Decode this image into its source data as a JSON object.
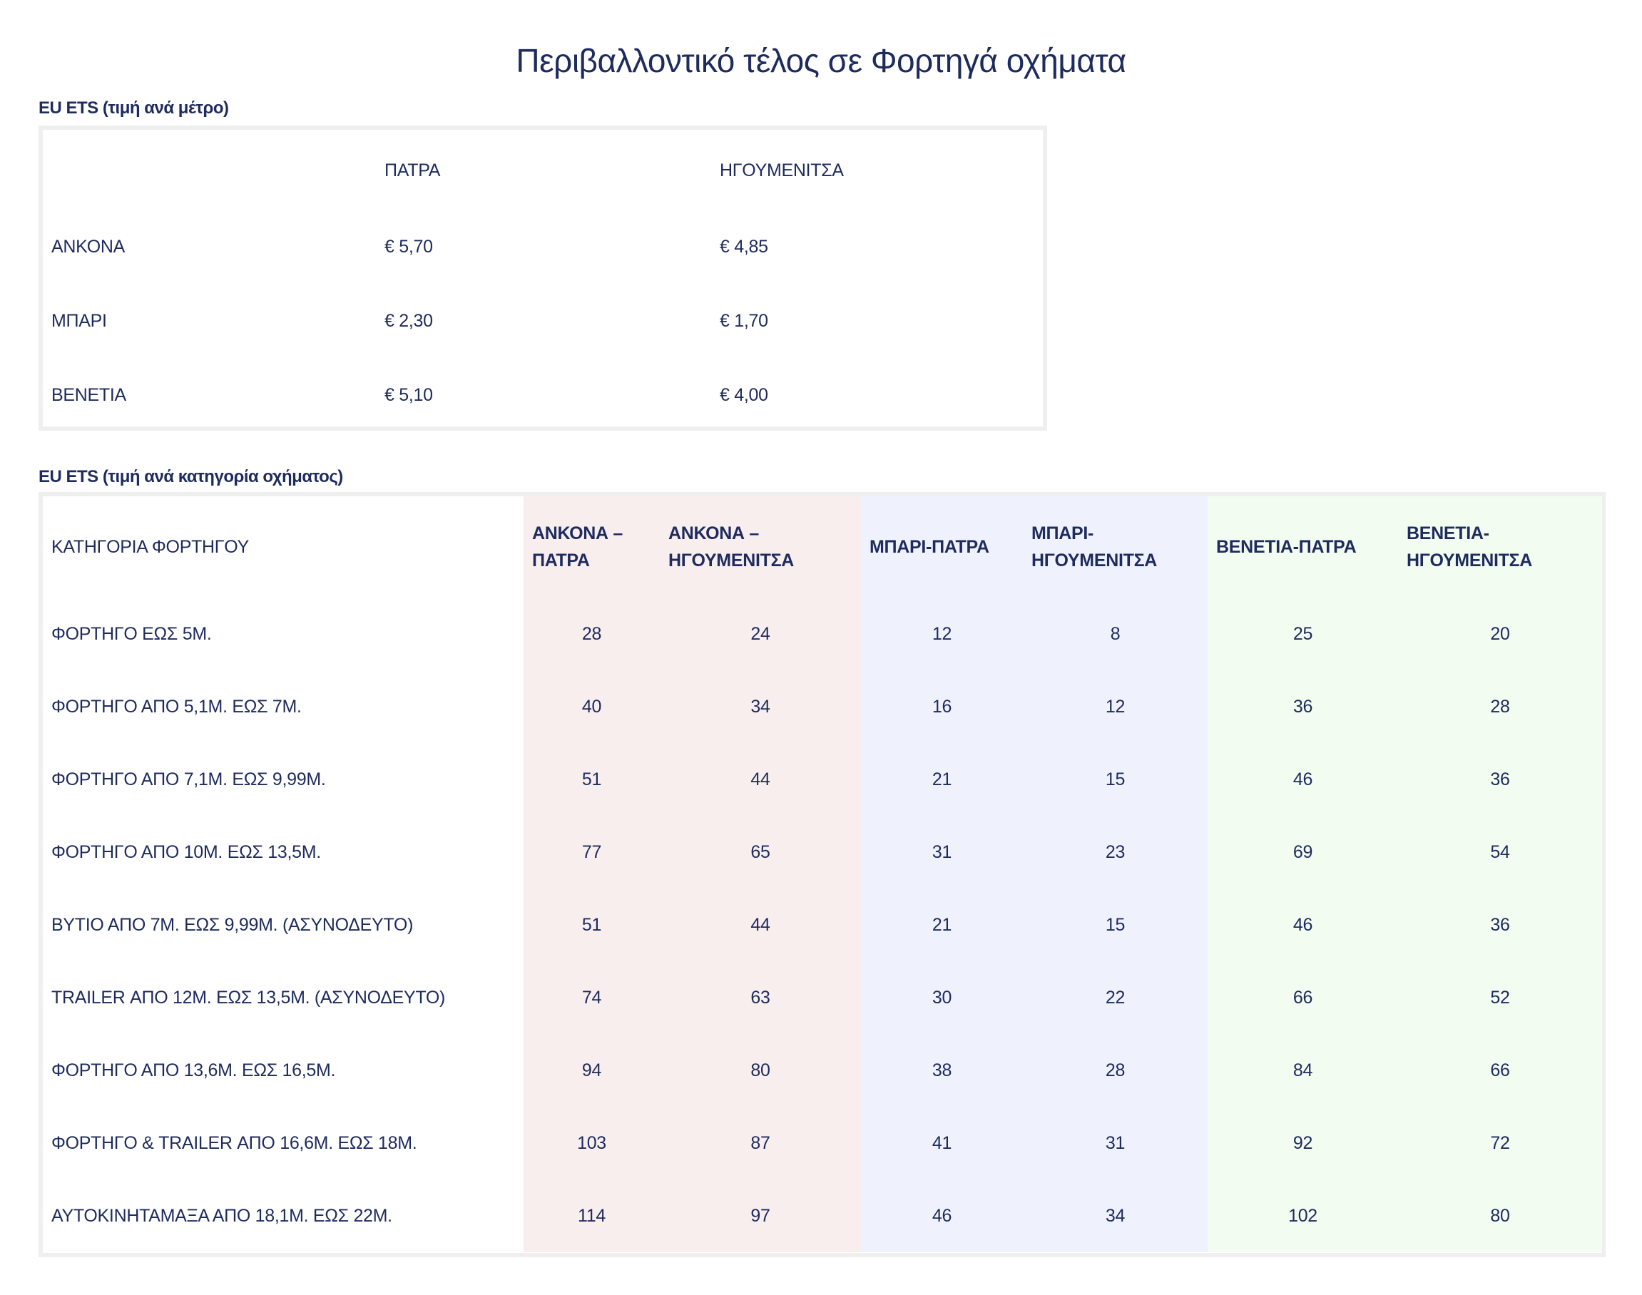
{
  "title": "Περιβαλλοντικό τέλος σε Φορτηγά οχήματα",
  "table1": {
    "label": "EU ETS (τιμή ανά μέτρο)",
    "headers": [
      "",
      "ΠΑΤΡΑ",
      "ΗΓΟΥΜΕΝΙΤΣΑ"
    ],
    "rows": [
      [
        "ΑΝΚΟΝΑ",
        "€ 5,70",
        "€ 4,85"
      ],
      [
        "ΜΠΑΡΙ",
        "€ 2,30",
        "€ 1,70"
      ],
      [
        "ΒΕΝΕΤΙΑ",
        "€ 5,10",
        "€ 4,00"
      ]
    ]
  },
  "table2": {
    "label": "EU ETS (τιμή ανά κατηγορία οχήματος)",
    "headers": [
      "ΚΑΤΗΓΟΡΙΑ ΦΟΡΤΗΓΟΥ",
      "ΑΝΚΟΝΑ – ΠΑΤΡΑ",
      "ΑΝΚΟΝΑ – ΗΓΟΥΜΕΝΙΤΣΑ",
      "ΜΠΑΡΙ-ΠΑΤΡΑ",
      "ΜΠΑΡΙ-ΗΓΟΥΜΕΝΙΤΣΑ",
      "ΒΕΝΕΤΙΑ-ΠΑΤΡΑ",
      "ΒΕΝΕΤΙΑ-ΗΓΟΥΜΕΝΙΤΣΑ"
    ],
    "rows": [
      [
        "ΦΟΡΤΗΓΟ ΕΩΣ 5Μ.",
        "28",
        "24",
        "12",
        "8",
        "25",
        "20"
      ],
      [
        "ΦΟΡΤΗΓΟ ΑΠΟ 5,1Μ. ΕΩΣ 7Μ.",
        "40",
        "34",
        "16",
        "12",
        "36",
        "28"
      ],
      [
        "ΦΟΡΤΗΓΟ ΑΠΟ 7,1Μ. ΕΩΣ 9,99Μ.",
        "51",
        "44",
        "21",
        "15",
        "46",
        "36"
      ],
      [
        "ΦΟΡΤΗΓΟ ΑΠΟ 10Μ. ΕΩΣ 13,5Μ.",
        "77",
        "65",
        "31",
        "23",
        "69",
        "54"
      ],
      [
        "ΒΥΤΙΟ ΑΠΟ 7Μ. ΕΩΣ 9,99Μ. (ΑΣΥΝΟΔΕΥΤΟ)",
        "51",
        "44",
        "21",
        "15",
        "46",
        "36"
      ],
      [
        "TRAILER ΑΠΟ 12Μ. ΕΩΣ 13,5Μ. (ΑΣΥΝΟΔΕΥΤΟ)",
        "74",
        "63",
        "30",
        "22",
        "66",
        "52"
      ],
      [
        "ΦΟΡΤΗΓΟ ΑΠΟ 13,6Μ. ΕΩΣ 16,5Μ.",
        "94",
        "80",
        "38",
        "28",
        "84",
        "66"
      ],
      [
        "ΦΟΡΤΗΓΟ & TRAILER ΑΠΟ 16,6Μ. ΕΩΣ 18Μ.",
        "103",
        "87",
        "41",
        "31",
        "92",
        "72"
      ],
      [
        "ΑΥΤΟΚΙΝΗΤΑΜΑΞΑ ΑΠΟ 18,1Μ. ΕΩΣ 22Μ.",
        "114",
        "97",
        "46",
        "34",
        "102",
        "80"
      ]
    ]
  },
  "colors": {
    "text": "#1e2b5e",
    "ankona": "#f9eeee",
    "bari": "#eff2fd",
    "venetia": "#f3fcf0",
    "border": "#efefef"
  }
}
